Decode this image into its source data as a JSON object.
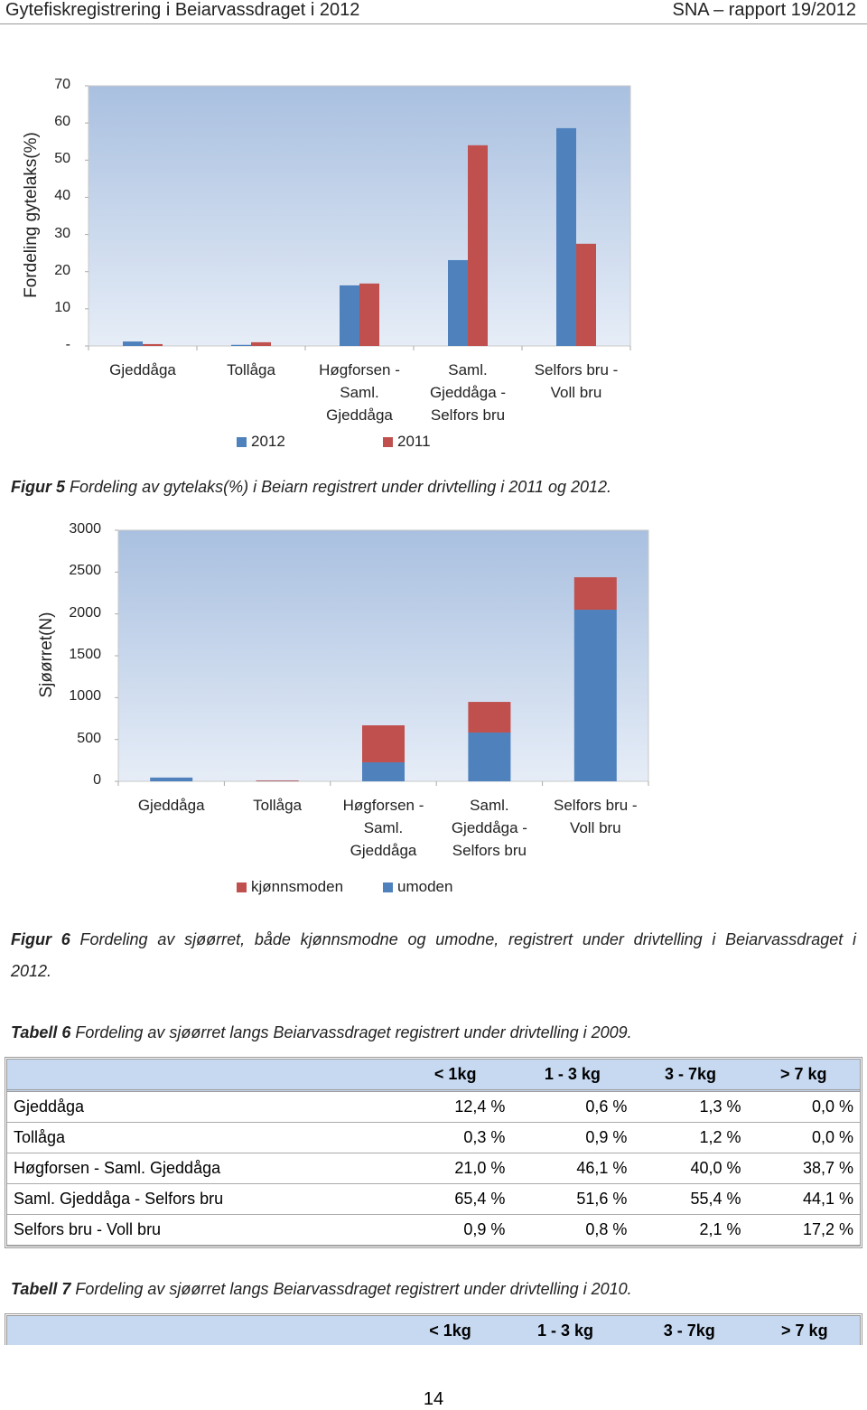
{
  "header": {
    "title": "Gytefiskregistrering i Beiarvassdraget i 2012",
    "report": "SNA – rapport 19/2012"
  },
  "chart_data": [
    {
      "type": "bar",
      "ylabel": "Fordeling gytelaks(%)",
      "categories": [
        "Gjeddåga",
        "Tollåga",
        "Høgforsen - Saml. Gjeddåga",
        "Saml. Gjeddåga - Selfors bru",
        "Selfors bru - Voll bru"
      ],
      "series": [
        {
          "name": "2012",
          "color": "#4f81bd",
          "values": [
            1.2,
            0.3,
            16.3,
            23.1,
            58.6
          ]
        },
        {
          "name": "2011",
          "color": "#c0504d",
          "values": [
            0.5,
            1.0,
            16.8,
            54.0,
            27.5
          ]
        }
      ],
      "ylim": [
        0,
        70
      ],
      "yticks": [
        {
          "value": 0,
          "label": "-"
        },
        10,
        20,
        30,
        40,
        50,
        60,
        70
      ],
      "stacked": false,
      "legend": "bottom"
    },
    {
      "type": "bar",
      "ylabel": "Sjøørret(N)",
      "categories": [
        "Gjeddåga",
        "Tollåga",
        "Høgforsen - Saml. Gjeddåga",
        "Saml. Gjeddåga - Selfors bru",
        "Selfors bru - Voll bru"
      ],
      "series": [
        {
          "name": "umoden",
          "color": "#4f81bd",
          "values": [
            45,
            3,
            227,
            583,
            2050
          ]
        },
        {
          "name": "kjønnsmoden",
          "color": "#c0504d",
          "values": [
            0,
            8,
            442,
            366,
            388
          ]
        }
      ],
      "ylim": [
        0,
        3000
      ],
      "yticks": [
        0,
        500,
        1000,
        1500,
        2000,
        2500,
        3000
      ],
      "stacked": true,
      "legend": "bottom"
    }
  ],
  "captions": [
    {
      "label": "Figur 5",
      "text": "Fordeling av gytelaks(%) i Beiarn registrert under drivtelling i 2011 og 2012."
    },
    {
      "label": "Figur 6",
      "text": "Fordeling av sjøørret, både kjønnsmodne og umodne, registrert under drivtelling i Beiarvassdraget i 2012."
    }
  ],
  "tables": [
    {
      "caption_label": "Tabell 6",
      "caption": "Fordeling av sjøørret langs Beiarvassdraget registrert under drivtelling i 2009.",
      "columns": [
        "< 1kg",
        "1 - 3 kg",
        "3 - 7kg",
        "> 7 kg"
      ],
      "rows": [
        [
          "Gjeddåga",
          "12,4 %",
          "0,6 %",
          "1,3 %",
          "0,0 %"
        ],
        [
          "Tollåga",
          "0,3 %",
          "0,9 %",
          "1,2 %",
          "0,0 %"
        ],
        [
          "Høgforsen - Saml. Gjeddåga",
          "21,0 %",
          "46,1 %",
          "40,0 %",
          "38,7 %"
        ],
        [
          "Saml. Gjeddåga - Selfors bru",
          "65,4 %",
          "51,6 %",
          "55,4 %",
          "44,1 %"
        ],
        [
          "Selfors bru - Voll bru",
          "0,9 %",
          "0,8 %",
          "2,1 %",
          "17,2 %"
        ]
      ]
    },
    {
      "caption_label": "Tabell 7",
      "caption": "Fordeling av sjøørret langs Beiarvassdraget registrert under drivtelling i 2010.",
      "columns": [
        "< 1kg",
        "1 - 3 kg",
        "3 - 7kg",
        "> 7 kg"
      ],
      "rows": []
    }
  ],
  "page_number": "14"
}
